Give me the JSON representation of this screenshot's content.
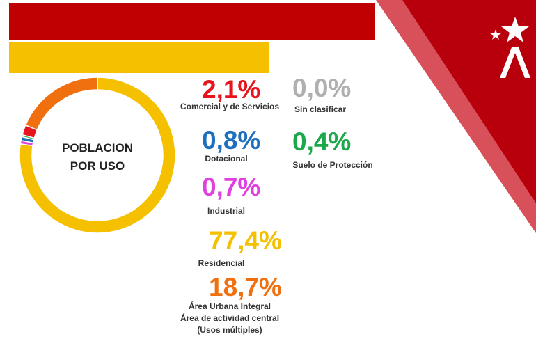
{
  "chart_data": {
    "type": "pie",
    "title": "POBLACION POR USO",
    "categories": [
      "Residencial",
      "Industrial",
      "Dotacional",
      "Suelo de Protección",
      "Comercial y de Servicios",
      "Sin clasificar",
      "Área Urbana Integral\nÁrea de actividad central\n(Usos múltiples)"
    ],
    "values": [
      77.4,
      0.7,
      0.8,
      0.4,
      2.1,
      0.0,
      18.7
    ],
    "value_labels": [
      "77,4%",
      "0,7%",
      "0,8%",
      "0,4%",
      "2,1%",
      "0,0%",
      "18,7%"
    ],
    "colors": [
      "#f5c000",
      "#e040e0",
      "#1f6fc0",
      "#1aa84b",
      "#e8141c",
      "#b0b0b0",
      "#f07010"
    ]
  }
}
